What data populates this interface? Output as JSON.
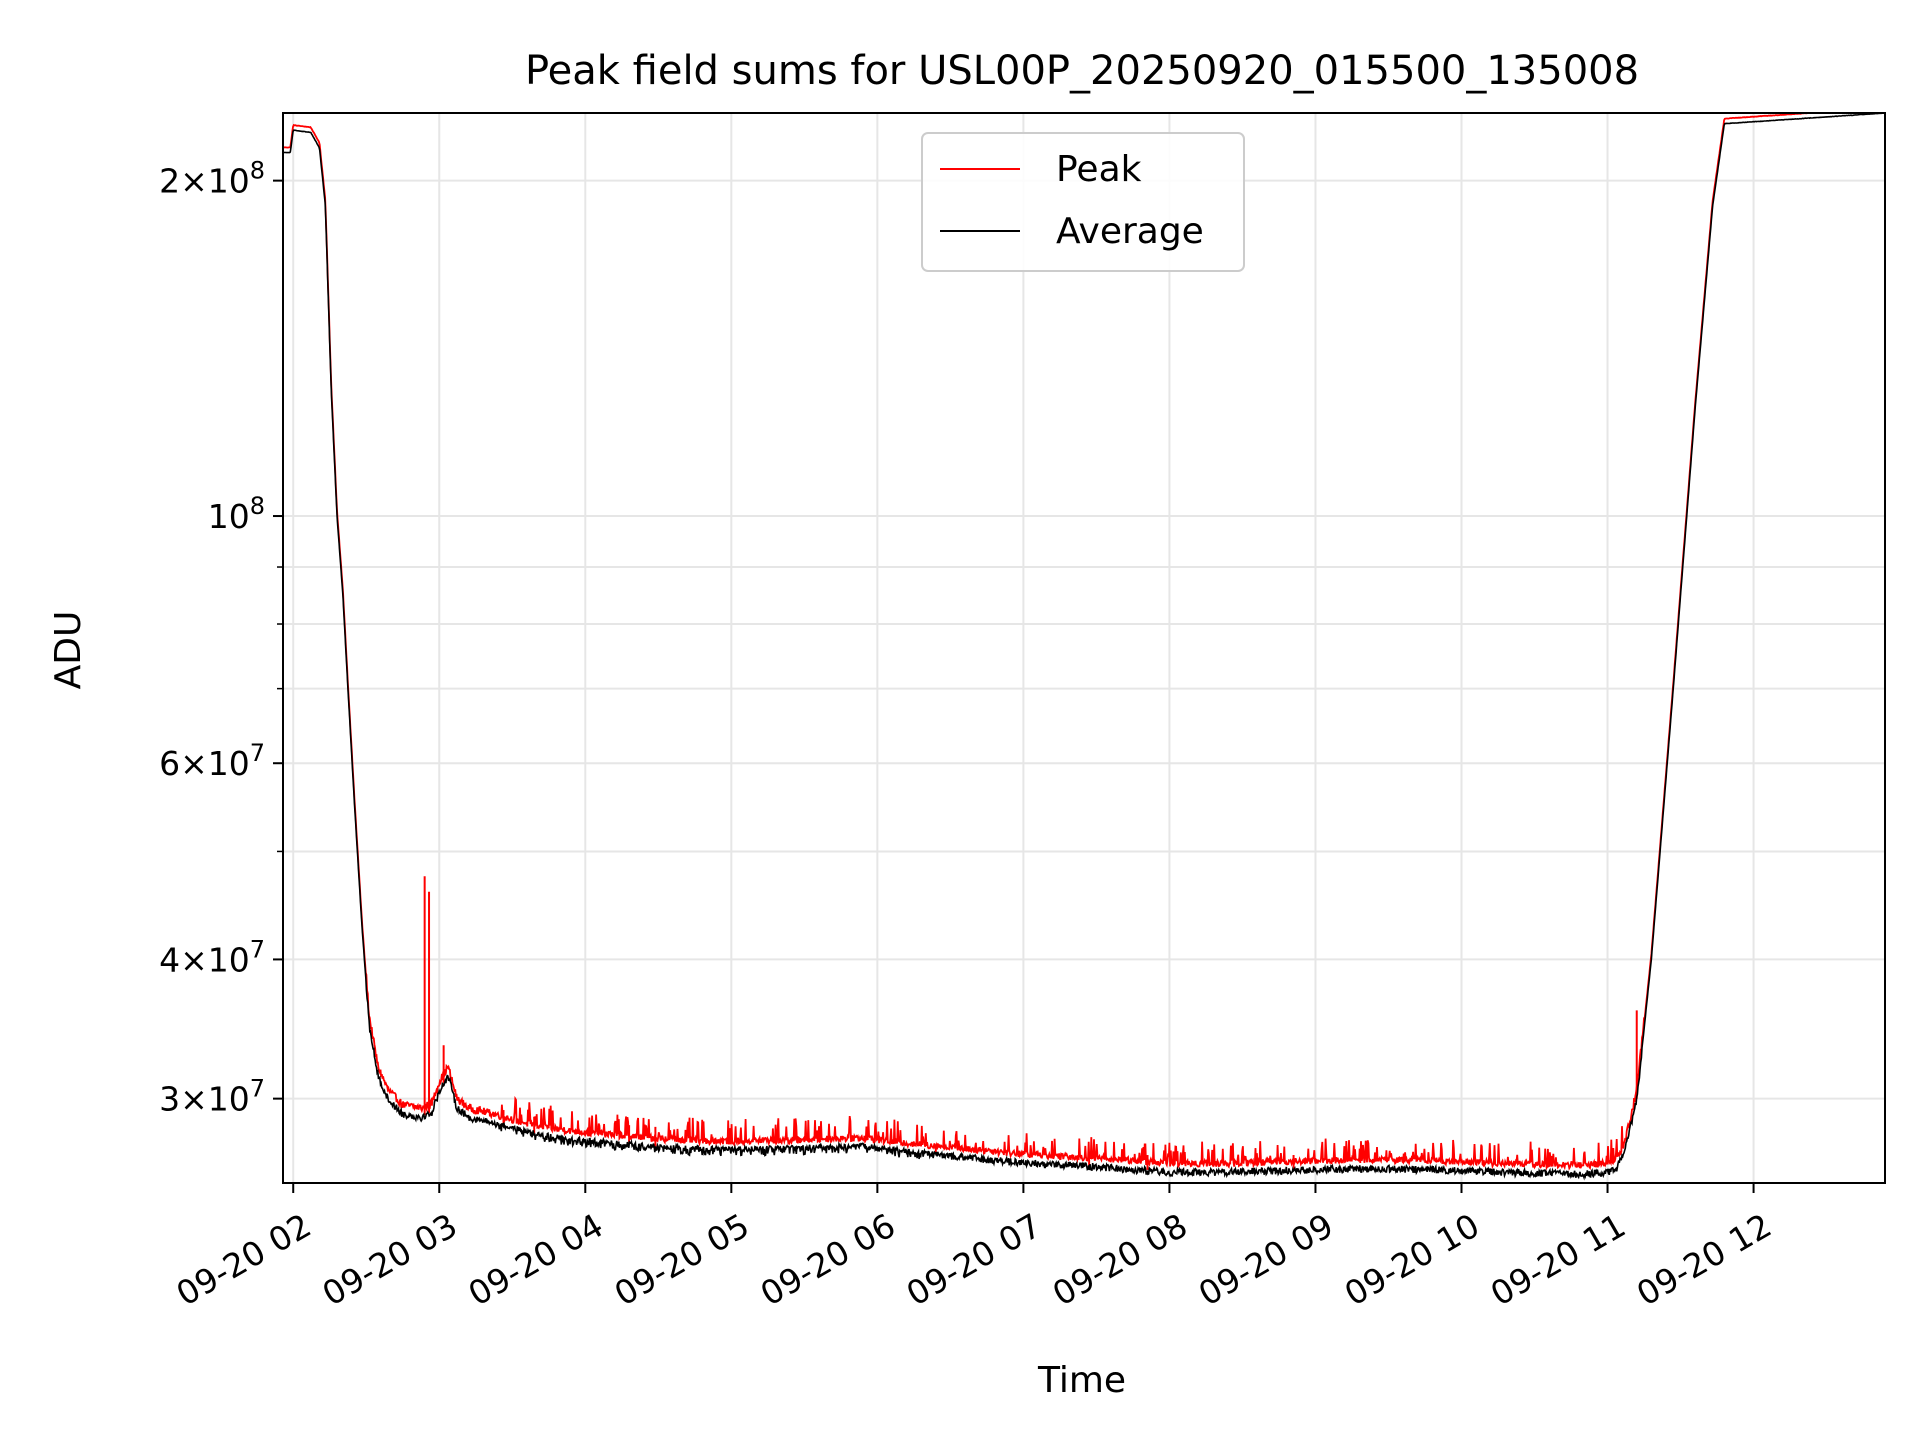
{
  "chart_data": {
    "type": "line",
    "title": "Peak field sums for USL00P_20250920_015500_135008",
    "xlabel": "Time",
    "ylabel": "ADU",
    "yscale": "log",
    "ylim": [
      25200000,
      230000000
    ],
    "xlim_hours": [
      1.93,
      12.9
    ],
    "grid": true,
    "legend_position": "upper-center",
    "x_ticks": [
      {
        "hour": 2,
        "label": "09-20 02"
      },
      {
        "hour": 3,
        "label": "09-20 03"
      },
      {
        "hour": 4,
        "label": "09-20 04"
      },
      {
        "hour": 5,
        "label": "09-20 05"
      },
      {
        "hour": 6,
        "label": "09-20 06"
      },
      {
        "hour": 7,
        "label": "09-20 07"
      },
      {
        "hour": 8,
        "label": "09-20 08"
      },
      {
        "hour": 9,
        "label": "09-20 09"
      },
      {
        "hour": 10,
        "label": "09-20 10"
      },
      {
        "hour": 11,
        "label": "09-20 11"
      },
      {
        "hour": 12,
        "label": "09-20 12"
      }
    ],
    "y_ticks": [
      {
        "value": 200000000,
        "mant": "2",
        "exp": "8"
      },
      {
        "value": 100000000,
        "mant": "",
        "exp": "8"
      },
      {
        "value": 60000000,
        "mant": "6",
        "exp": "7"
      },
      {
        "value": 40000000,
        "mant": "4",
        "exp": "7"
      },
      {
        "value": 30000000,
        "mant": "3",
        "exp": "7"
      }
    ],
    "y_minor_ticks": [
      50000000,
      70000000,
      80000000,
      90000000
    ],
    "series": [
      {
        "name": "Peak",
        "color": "#ff0000",
        "base_offset": 1.01,
        "spikes": [
          {
            "hour": 2.9,
            "value": 47500000
          },
          {
            "hour": 2.93,
            "value": 46000000
          },
          {
            "hour": 3.03,
            "value": 33500000
          },
          {
            "hour": 3.44,
            "value": 29300000
          },
          {
            "hour": 3.65,
            "value": 28900000
          },
          {
            "hour": 4.3,
            "value": 28400000
          },
          {
            "hour": 4.48,
            "value": 28300000
          },
          {
            "hour": 6.4,
            "value": 27300000
          },
          {
            "hour": 7.45,
            "value": 26800000
          },
          {
            "hour": 7.85,
            "value": 26700000
          },
          {
            "hour": 8.85,
            "value": 26700000
          },
          {
            "hour": 11.2,
            "value": 36000000
          }
        ],
        "noise_amp": 0.04
      },
      {
        "name": "Average",
        "color": "#000000",
        "base_offset": 1.0,
        "noise_amp": 0.015
      }
    ],
    "profile": [
      [
        1.93,
        212000000
      ],
      [
        1.98,
        212000000
      ],
      [
        2.0,
        222000000
      ],
      [
        2.12,
        221000000
      ],
      [
        2.18,
        214000000
      ],
      [
        2.22,
        190000000
      ],
      [
        2.26,
        130000000
      ],
      [
        2.3,
        100000000
      ],
      [
        2.34,
        85000000
      ],
      [
        2.38,
        68000000
      ],
      [
        2.42,
        55000000
      ],
      [
        2.47,
        43000000
      ],
      [
        2.52,
        35000000
      ],
      [
        2.58,
        31500000
      ],
      [
        2.65,
        30000000
      ],
      [
        2.75,
        29100000
      ],
      [
        2.88,
        28900000
      ],
      [
        2.95,
        29200000
      ],
      [
        3.0,
        30500000
      ],
      [
        3.06,
        31500000
      ],
      [
        3.12,
        29500000
      ],
      [
        3.2,
        28900000
      ],
      [
        3.4,
        28500000
      ],
      [
        3.6,
        28000000
      ],
      [
        3.8,
        27700000
      ],
      [
        4.0,
        27500000
      ],
      [
        4.3,
        27300000
      ],
      [
        4.6,
        27100000
      ],
      [
        5.0,
        27000000
      ],
      [
        5.5,
        27100000
      ],
      [
        5.9,
        27200000
      ],
      [
        6.2,
        26900000
      ],
      [
        6.6,
        26600000
      ],
      [
        7.0,
        26300000
      ],
      [
        7.5,
        26100000
      ],
      [
        8.0,
        25800000
      ],
      [
        8.4,
        25800000
      ],
      [
        8.8,
        25900000
      ],
      [
        9.3,
        26000000
      ],
      [
        9.8,
        25950000
      ],
      [
        10.3,
        25800000
      ],
      [
        10.8,
        25700000
      ],
      [
        11.0,
        25800000
      ],
      [
        11.06,
        26000000
      ],
      [
        11.12,
        27000000
      ],
      [
        11.2,
        30000000
      ],
      [
        11.3,
        40000000
      ],
      [
        11.45,
        70000000
      ],
      [
        11.6,
        125000000
      ],
      [
        11.72,
        190000000
      ],
      [
        11.8,
        225000000
      ],
      [
        12.9,
        230000000
      ]
    ]
  }
}
